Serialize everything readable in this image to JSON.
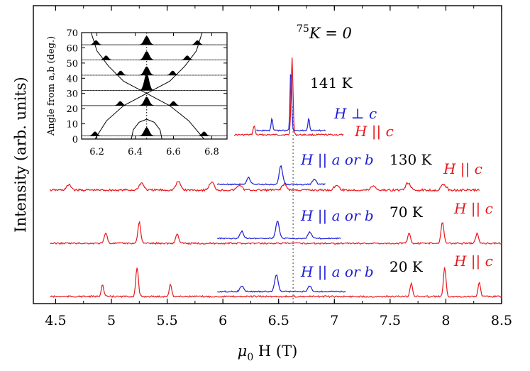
{
  "chart_data": [
    {
      "type": "line",
      "xlabel": "μ0 H (T)",
      "ylabel": "Intensity (arb. units)",
      "xlim": [
        4.3,
        8.5
      ],
      "xticks": [
        "4.5",
        "5",
        "5.5",
        "6",
        "6.5",
        "7",
        "7.5",
        "8",
        "8.5"
      ],
      "xtick_values": [
        4.5,
        5,
        5.5,
        6,
        6.5,
        7,
        7.5,
        8,
        8.5
      ],
      "reference_line": {
        "x": 6.63,
        "label": "75K = 0",
        "style": "dotted"
      },
      "grid": false,
      "colors": {
        "parallel_c": "#e8171b",
        "perp_c": "#1c1cd6",
        "ref": "#7f7f7f"
      },
      "temperatures": [
        "141 K",
        "130 K",
        "70 K",
        "20 K"
      ],
      "series": [
        {
          "temperature": "141 K",
          "traces": [
            {
              "name": "H || c",
              "color": "#e8171b",
              "x_range": [
                6.1,
                7.08
              ],
              "peaks": [
                {
                  "x": 6.28,
                  "height": 0.12
                },
                {
                  "x": 6.62,
                  "height": 1.0
                }
              ]
            },
            {
              "name": "H ⊥ c",
              "color": "#1c1cd6",
              "x_range": [
                6.3,
                6.92
              ],
              "peaks": [
                {
                  "x": 6.44,
                  "height": 0.2
                },
                {
                  "x": 6.61,
                  "height": 1.0
                },
                {
                  "x": 6.77,
                  "height": 0.2
                }
              ]
            }
          ]
        },
        {
          "temperature": "130 K",
          "traces": [
            {
              "name": "H || c",
              "color": "#e8171b",
              "x_range": [
                4.45,
                8.3
              ],
              "peaks": [
                {
                  "x": 4.62,
                  "height": 0.18
                },
                {
                  "x": 5.27,
                  "height": 0.25
                },
                {
                  "x": 5.6,
                  "height": 0.3
                },
                {
                  "x": 5.9,
                  "height": 0.28
                },
                {
                  "x": 6.15,
                  "height": 0.18
                },
                {
                  "x": 6.55,
                  "height": 0.2
                },
                {
                  "x": 7.02,
                  "height": 0.18
                },
                {
                  "x": 7.35,
                  "height": 0.15
                },
                {
                  "x": 7.66,
                  "height": 0.25
                },
                {
                  "x": 7.98,
                  "height": 0.2
                }
              ]
            },
            {
              "name": "H || a or b",
              "color": "#1c1cd6",
              "x_range": [
                5.95,
                6.92
              ],
              "peaks": [
                {
                  "x": 6.23,
                  "height": 0.25
                },
                {
                  "x": 6.52,
                  "height": 0.65
                },
                {
                  "x": 6.82,
                  "height": 0.2
                }
              ]
            }
          ]
        },
        {
          "temperature": "70 K",
          "traces": [
            {
              "name": "H || c",
              "color": "#e8171b",
              "x_range": [
                4.45,
                8.5
              ],
              "peaks": [
                {
                  "x": 4.95,
                  "height": 0.28
                },
                {
                  "x": 5.25,
                  "height": 0.55
                },
                {
                  "x": 5.59,
                  "height": 0.25
                },
                {
                  "x": 7.67,
                  "height": 0.25
                },
                {
                  "x": 7.97,
                  "height": 0.55
                },
                {
                  "x": 8.28,
                  "height": 0.25
                }
              ]
            },
            {
              "name": "H || a or b",
              "color": "#1c1cd6",
              "x_range": [
                5.95,
                7.06
              ],
              "peaks": [
                {
                  "x": 6.17,
                  "height": 0.25
                },
                {
                  "x": 6.49,
                  "height": 0.6
                },
                {
                  "x": 6.78,
                  "height": 0.22
                }
              ]
            }
          ]
        },
        {
          "temperature": "20 K",
          "traces": [
            {
              "name": "H || c",
              "color": "#e8171b",
              "x_range": [
                4.45,
                8.5
              ],
              "peaks": [
                {
                  "x": 4.92,
                  "height": 0.3
                },
                {
                  "x": 5.23,
                  "height": 0.75
                },
                {
                  "x": 5.53,
                  "height": 0.3
                },
                {
                  "x": 7.69,
                  "height": 0.35
                },
                {
                  "x": 7.99,
                  "height": 0.75
                },
                {
                  "x": 8.3,
                  "height": 0.35
                }
              ]
            },
            {
              "name": "H || a or b",
              "color": "#1c1cd6",
              "x_range": [
                5.95,
                7.1
              ],
              "peaks": [
                {
                  "x": 6.17,
                  "height": 0.2
                },
                {
                  "x": 6.48,
                  "height": 0.6
                },
                {
                  "x": 6.78,
                  "height": 0.2
                }
              ]
            }
          ]
        }
      ],
      "annotations": [
        "H ⊥ c",
        "H || c",
        "H || a or b"
      ]
    },
    {
      "type": "line",
      "ylabel": "Angle from a,b (deg.)",
      "xlim": [
        6.12,
        6.88
      ],
      "ylim": [
        0,
        70
      ],
      "xticks": [
        "6.2",
        "6.4",
        "6.6",
        "6.8"
      ],
      "xtick_values": [
        6.2,
        6.4,
        6.6,
        6.8
      ],
      "yticks": [
        "0",
        "10",
        "20",
        "30",
        "40",
        "50",
        "60",
        "70"
      ],
      "ytick_values": [
        0,
        10,
        20,
        30,
        40,
        50,
        60,
        70
      ],
      "center_line": 6.46,
      "angles": [
        0,
        20,
        30,
        40,
        50,
        60
      ],
      "curves": [
        {
          "name": "lower-branch",
          "points": [
            [
              6.19,
              0
            ],
            [
              6.25,
              12
            ],
            [
              6.34,
              22
            ],
            [
              6.46,
              30
            ],
            [
              6.58,
              38
            ],
            [
              6.66,
              48
            ],
            [
              6.72,
              58
            ],
            [
              6.75,
              70
            ]
          ]
        },
        {
          "name": "upper-branch",
          "points": [
            [
              6.76,
              0
            ],
            [
              6.68,
              12
            ],
            [
              6.58,
              22
            ],
            [
              6.46,
              30
            ],
            [
              6.34,
              38
            ],
            [
              6.26,
              48
            ],
            [
              6.2,
              58
            ],
            [
              6.17,
              70
            ]
          ]
        },
        {
          "name": "inner-arc",
          "points": [
            [
              6.38,
              0
            ],
            [
              6.39,
              6
            ],
            [
              6.42,
              11
            ],
            [
              6.46,
              13
            ],
            [
              6.5,
              11
            ],
            [
              6.53,
              6
            ],
            [
              6.54,
              0
            ]
          ]
        }
      ]
    }
  ],
  "labels": {
    "ylabel": "Intensity (arb. units)",
    "xlabel_mu": "μ",
    "xlabel_sub": "0",
    "xlabel_rest": " H (T)",
    "ref_pre": "75",
    "ref_main": "K = 0",
    "inset_ylabel": "Angle from a,b (deg.)"
  }
}
